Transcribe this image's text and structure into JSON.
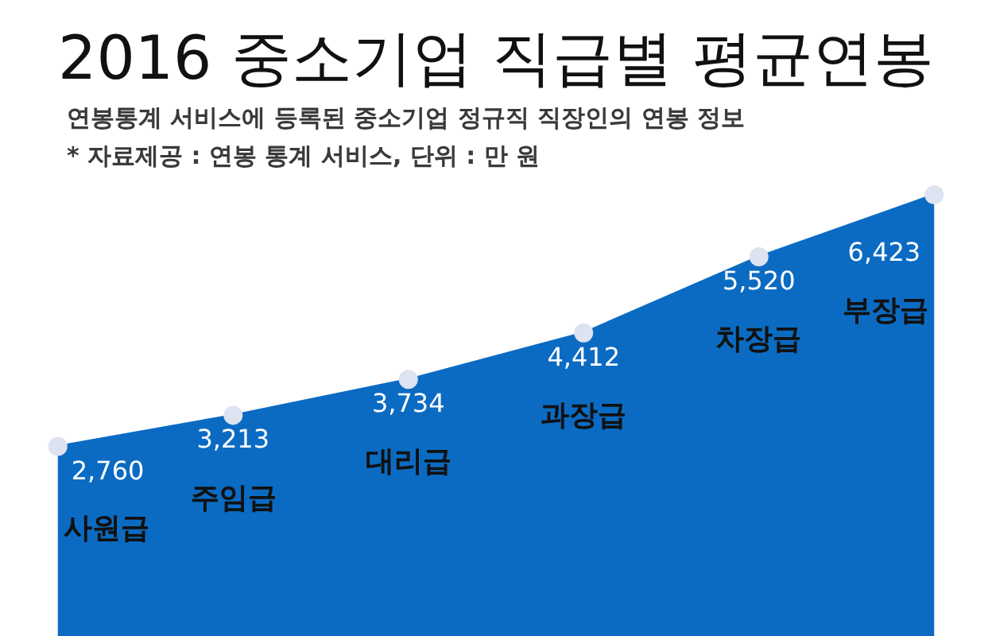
{
  "chart_data": {
    "type": "area",
    "title": "2016 중소기업 직급별 평균연봉",
    "subtitle": "연봉통계 서비스에 등록된 중소기업 정규직 직장인의 연봉 정보",
    "annotations": [
      "* 자료제공 : 연봉 통계 서비스, 단위 : 만 원"
    ],
    "categories": [
      "사원급",
      "주임급",
      "대리급",
      "과장급",
      "차장급",
      "부장급"
    ],
    "values": [
      2760,
      3213,
      3734,
      4412,
      5520,
      6423
    ],
    "color": "#0b6bc3",
    "marker": "circle",
    "value_labels": [
      "2,760",
      "3,213",
      "3,734",
      "4,412",
      "5,520",
      "6,423"
    ],
    "tick_labels": false
  }
}
